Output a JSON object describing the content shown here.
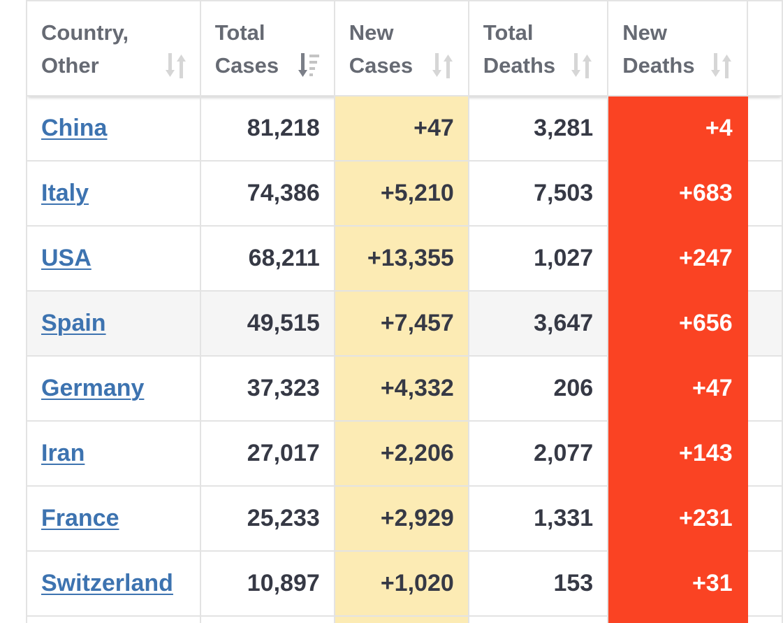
{
  "table": {
    "headers": [
      {
        "label": "Country,\nOther",
        "sort": "unsorted"
      },
      {
        "label": "Total\nCases",
        "sort": "descending"
      },
      {
        "label": "New\nCases",
        "sort": "unsorted"
      },
      {
        "label": "Total\nDeaths",
        "sort": "unsorted"
      },
      {
        "label": "New\nDeaths",
        "sort": "unsorted"
      }
    ],
    "rows": [
      {
        "country": "China",
        "total_cases": "81,218",
        "new_cases": "+47",
        "total_deaths": "3,281",
        "new_deaths": "+4"
      },
      {
        "country": "Italy",
        "total_cases": "74,386",
        "new_cases": "+5,210",
        "total_deaths": "7,503",
        "new_deaths": "+683"
      },
      {
        "country": "USA",
        "total_cases": "68,211",
        "new_cases": "+13,355",
        "total_deaths": "1,027",
        "new_deaths": "+247"
      },
      {
        "country": "Spain",
        "total_cases": "49,515",
        "new_cases": "+7,457",
        "total_deaths": "3,647",
        "new_deaths": "+656"
      },
      {
        "country": "Germany",
        "total_cases": "37,323",
        "new_cases": "+4,332",
        "total_deaths": "206",
        "new_deaths": "+47"
      },
      {
        "country": "Iran",
        "total_cases": "27,017",
        "new_cases": "+2,206",
        "total_deaths": "2,077",
        "new_deaths": "+143"
      },
      {
        "country": "France",
        "total_cases": "25,233",
        "new_cases": "+2,929",
        "total_deaths": "1,331",
        "new_deaths": "+231"
      },
      {
        "country": "Switzerland",
        "total_cases": "10,897",
        "new_cases": "+1,020",
        "total_deaths": "153",
        "new_deaths": "+31"
      }
    ]
  },
  "colors": {
    "link": "#3d73b0",
    "new_cases_bg": "#fcebb4",
    "new_deaths_bg": "#fa4323",
    "highlight_row_bg": "#f5f5f5"
  },
  "icons": {
    "unsorted": "sort-unsorted-icon",
    "descending": "sort-descending-icon"
  }
}
